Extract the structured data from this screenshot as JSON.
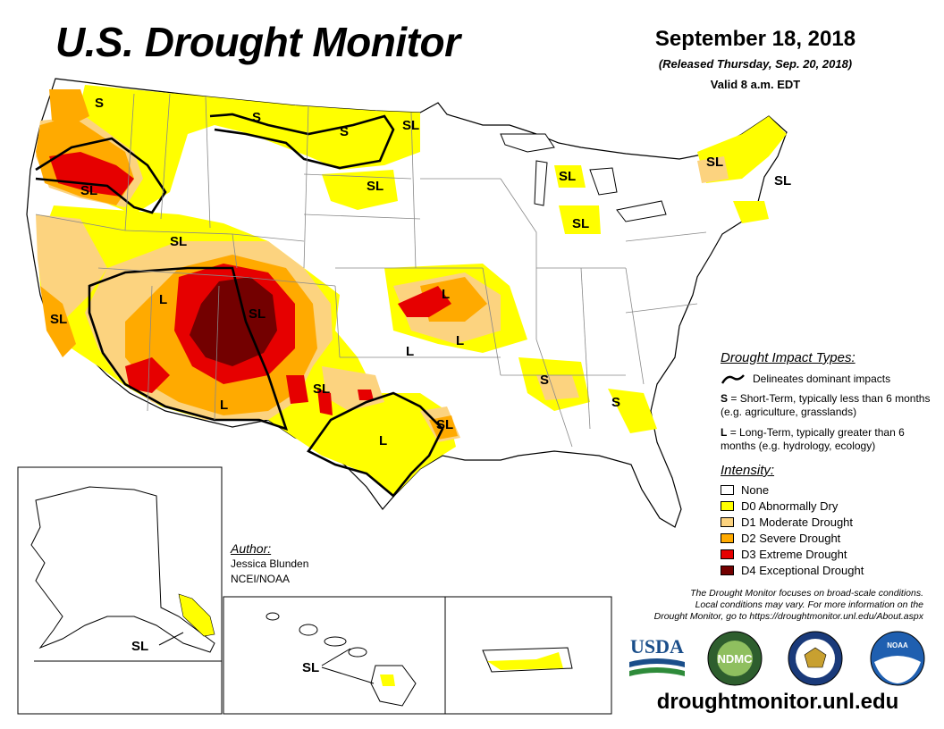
{
  "title": "U.S. Drought Monitor",
  "date": {
    "main": "September 18, 2018",
    "released": "(Released Thursday, Sep. 20, 2018)",
    "valid": "Valid 8 a.m. EDT"
  },
  "impact_legend": {
    "heading": "Drought Impact Types:",
    "line_label": "Delineates dominant impacts",
    "short_term_key": "S",
    "short_term_text": "= Short-Term, typically less than 6 months (e.g. agriculture, grasslands)",
    "long_term_key": "L",
    "long_term_text": "= Long-Term, typically greater than 6 months (e.g. hydrology, ecology)"
  },
  "intensity_legend": {
    "heading": "Intensity:",
    "items": [
      {
        "label": "None",
        "color": "#ffffff"
      },
      {
        "label": "D0 Abnormally Dry",
        "color": "#ffff00"
      },
      {
        "label": "D1 Moderate Drought",
        "color": "#fcd37f"
      },
      {
        "label": "D2 Severe Drought",
        "color": "#ffaa00"
      },
      {
        "label": "D3 Extreme Drought",
        "color": "#e60000"
      },
      {
        "label": "D4 Exceptional Drought",
        "color": "#730000"
      }
    ]
  },
  "author": {
    "heading": "Author:",
    "name": "Jessica Blunden",
    "org": "NCEI/NOAA"
  },
  "disclaimer": {
    "line1": "The Drought Monitor focuses on broad-scale conditions.",
    "line2": "Local conditions may vary. For more information on the",
    "line3": "Drought Monitor, go to https://droughtmonitor.unl.edu/About.aspx"
  },
  "logos": {
    "usda": "USDA",
    "ndmc": "NDMC",
    "noaa": "NOAA"
  },
  "website": "droughtmonitor.unl.edu",
  "map_labels": {
    "s_pnw": "S",
    "s_montana": "S",
    "s_nd": "S",
    "sl_mn": "SL",
    "sl_oregon": "SL",
    "sl_sd": "SL",
    "sl_utah": "SL",
    "sl_colorado": "SL",
    "sl_california": "SL",
    "l_nevada": "L",
    "l_arizona": "L",
    "sl_newmexico": "SL",
    "l_texas": "L",
    "sl_louisiana": "SL",
    "l_kansas": "L",
    "l_missouri": "L",
    "l_oklahoma": "L",
    "s_alabama": "S",
    "s_georgia": "S",
    "sl_michigan_n": "SL",
    "sl_michigan_s": "SL",
    "sl_maine": "SL",
    "sl_newengland": "SL",
    "sl_alaska": "SL",
    "sl_hawaii": "SL"
  }
}
